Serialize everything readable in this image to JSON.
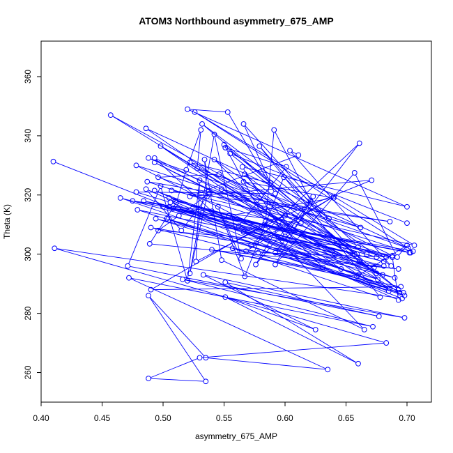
{
  "chart_data": {
    "type": "line",
    "title": "ATOM3 Northbound asymmetry_675_AMP",
    "xlabel": "asymmetry_675_AMP",
    "ylabel": "Theta (K)",
    "xlim": [
      0.4,
      0.72
    ],
    "ylim": [
      250,
      372
    ],
    "x_ticks": [
      "0.40",
      "0.45",
      "0.50",
      "0.55",
      "0.60",
      "0.65",
      "0.70"
    ],
    "y_ticks": [
      "260",
      "280",
      "300",
      "320",
      "340",
      "360"
    ],
    "grid": false,
    "series": [
      {
        "style": "points-and-lines",
        "color": "#0000ff",
        "points": [
          [
            0.41,
            331.3
          ],
          [
            0.696,
            285.0
          ],
          [
            0.411,
            302.0
          ],
          [
            0.683,
            270.0
          ],
          [
            0.53,
            265.0
          ],
          [
            0.488,
            258.0
          ],
          [
            0.535,
            257.0
          ],
          [
            0.488,
            286.0
          ],
          [
            0.535,
            265.0
          ],
          [
            0.635,
            261.0
          ],
          [
            0.472,
            292.0
          ],
          [
            0.672,
            275.5
          ],
          [
            0.516,
            291.5
          ],
          [
            0.698,
            278.5
          ],
          [
            0.533,
            293.0
          ],
          [
            0.625,
            274.5
          ],
          [
            0.551,
            285.5
          ],
          [
            0.66,
            263.0
          ],
          [
            0.551,
            290.5
          ],
          [
            0.677,
            279.0
          ],
          [
            0.471,
            296.0
          ],
          [
            0.498,
            323.0
          ],
          [
            0.52,
            291.0
          ],
          [
            0.53,
            325.0
          ],
          [
            0.527,
            297.5
          ],
          [
            0.6,
            313.0
          ],
          [
            0.576,
            296.5
          ],
          [
            0.623,
            319.5
          ],
          [
            0.592,
            296.5
          ],
          [
            0.657,
            327.5
          ],
          [
            0.692,
            299.0
          ],
          [
            0.7,
            303.0
          ],
          [
            0.659,
            292.5
          ],
          [
            0.54,
            301.5
          ],
          [
            0.695,
            289.0
          ],
          [
            0.49,
            288.0
          ],
          [
            0.583,
            310.0
          ],
          [
            0.665,
            274.5
          ],
          [
            0.548,
            298.0
          ],
          [
            0.534,
            332.0
          ],
          [
            0.536,
            319.5
          ],
          [
            0.522,
            293.5
          ],
          [
            0.542,
            340.5
          ],
          [
            0.564,
            298.5
          ],
          [
            0.545,
            316.0
          ],
          [
            0.567,
            292.5
          ],
          [
            0.599,
            326.0
          ],
          [
            0.66,
            302.5
          ],
          [
            0.496,
            308.0
          ],
          [
            0.513,
            313.0
          ],
          [
            0.538,
            320.5
          ],
          [
            0.515,
            308.0
          ],
          [
            0.486,
            322.0
          ],
          [
            0.693,
            284.5
          ],
          [
            0.688,
            299.0
          ],
          [
            0.578,
            300.5
          ],
          [
            0.568,
            301.0
          ],
          [
            0.64,
            319.5
          ],
          [
            0.572,
            303.0
          ],
          [
            0.661,
            337.5
          ],
          [
            0.592,
            300.5
          ],
          [
            0.631,
            295.5
          ],
          [
            0.542,
            332.0
          ],
          [
            0.675,
            293.5
          ],
          [
            0.548,
            322.0
          ],
          [
            0.662,
            309.0
          ],
          [
            0.528,
            329.0
          ],
          [
            0.531,
            342.0
          ],
          [
            0.519,
            328.5
          ],
          [
            0.511,
            317.5
          ],
          [
            0.489,
            303.5
          ],
          [
            0.693,
            295.0
          ],
          [
            0.557,
            302.0
          ],
          [
            0.678,
            285.5
          ],
          [
            0.579,
            336.5
          ],
          [
            0.685,
            287.5
          ],
          [
            0.503,
            312.0
          ],
          [
            0.676,
            291.5
          ],
          [
            0.554,
            313.0
          ],
          [
            0.64,
            319.0
          ],
          [
            0.566,
            324.5
          ],
          [
            0.688,
            299.5
          ],
          [
            0.512,
            315.5
          ],
          [
            0.697,
            287.0
          ],
          [
            0.506,
            317.5
          ],
          [
            0.478,
            321.0
          ],
          [
            0.592,
            320.5
          ],
          [
            0.553,
            348.0
          ],
          [
            0.52,
            349.0
          ],
          [
            0.7,
            316.0
          ],
          [
            0.565,
            329.5
          ],
          [
            0.6,
            306.0
          ],
          [
            0.621,
            318.0
          ],
          [
            0.591,
            342.0
          ],
          [
            0.584,
            311.0
          ],
          [
            0.55,
            337.0
          ],
          [
            0.693,
            288.0
          ],
          [
            0.567,
            327.0
          ],
          [
            0.604,
            309.5
          ],
          [
            0.493,
            332.5
          ],
          [
            0.54,
            314.5
          ],
          [
            0.688,
            299.0
          ],
          [
            0.496,
            326.0
          ],
          [
            0.546,
            327.0
          ],
          [
            0.661,
            298.0
          ],
          [
            0.562,
            309.5
          ],
          [
            0.601,
            329.5
          ],
          [
            0.551,
            336.0
          ],
          [
            0.687,
            296.0
          ],
          [
            0.604,
            335.0
          ],
          [
            0.611,
            333.5
          ],
          [
            0.522,
            319.5
          ],
          [
            0.671,
            325.0
          ],
          [
            0.566,
            307.5
          ],
          [
            0.66,
            293.0
          ],
          [
            0.486,
            342.5
          ],
          [
            0.701,
            302.0
          ],
          [
            0.488,
            332.5
          ],
          [
            0.613,
            310.5
          ],
          [
            0.475,
            318.0
          ],
          [
            0.702,
            300.5
          ],
          [
            0.478,
            330.0
          ],
          [
            0.646,
            295.0
          ],
          [
            0.498,
            336.5
          ],
          [
            0.641,
            300.0
          ],
          [
            0.493,
            331.0
          ],
          [
            0.68,
            293.0
          ],
          [
            0.493,
            321.5
          ],
          [
            0.698,
            286.0
          ],
          [
            0.479,
            315.0
          ],
          [
            0.659,
            300.0
          ],
          [
            0.484,
            318.0
          ],
          [
            0.703,
            300.5
          ],
          [
            0.508,
            315.5
          ],
          [
            0.705,
            301.0
          ],
          [
            0.526,
            348.0
          ],
          [
            0.706,
            303.0
          ],
          [
            0.507,
            321.5
          ],
          [
            0.686,
            311.0
          ],
          [
            0.487,
            324.5
          ],
          [
            0.683,
            299.0
          ],
          [
            0.51,
            318.0
          ],
          [
            0.675,
            299.0
          ],
          [
            0.505,
            319.0
          ],
          [
            0.673,
            295.5
          ],
          [
            0.505,
            316.0
          ],
          [
            0.681,
            297.5
          ],
          [
            0.5,
            316.0
          ],
          [
            0.69,
            292.0
          ],
          [
            0.494,
            312.0
          ],
          [
            0.686,
            288.5
          ],
          [
            0.49,
            309.0
          ],
          [
            0.681,
            296.0
          ],
          [
            0.465,
            319.0
          ],
          [
            0.694,
            287.0
          ],
          [
            0.457,
            347.0
          ],
          [
            0.667,
            300.0
          ],
          [
            0.522,
            331.0
          ],
          [
            0.588,
            324.0
          ],
          [
            0.566,
            344.0
          ],
          [
            0.636,
            312.0
          ],
          [
            0.532,
            344.0
          ],
          [
            0.657,
            300.0
          ],
          [
            0.555,
            334.0
          ],
          [
            0.7,
            310.5
          ]
        ]
      }
    ]
  }
}
